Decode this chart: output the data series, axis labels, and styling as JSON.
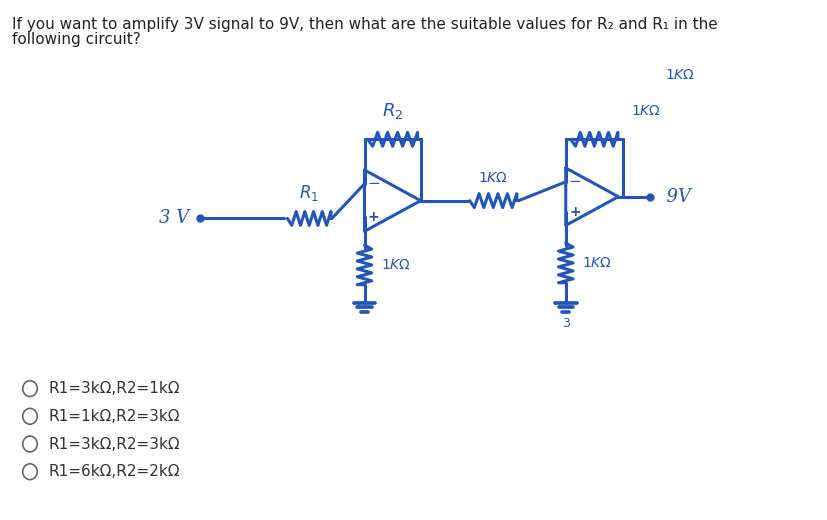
{
  "title_line1": "If you want to amplify 3V signal to 9V, then what are the suitable values for R₂ and R₁ in the",
  "title_line2": "following circuit?",
  "options": [
    "R1=3kΩ,R2=1kΩ",
    "R1=1kΩ,R2=3kΩ",
    "R1=3kΩ,R2=3kΩ",
    "R1=6kΩ,R2=2kΩ"
  ],
  "bg_color": "#ffffff",
  "text_color": "#222222",
  "circuit_color": "#2255bb",
  "handlabel_color": "#2255bb",
  "circuit_lw": 2.2,
  "fig_width": 8.28,
  "fig_height": 5.2,
  "dpi": 100,
  "title_fontsize": 11,
  "option_fontsize": 11
}
